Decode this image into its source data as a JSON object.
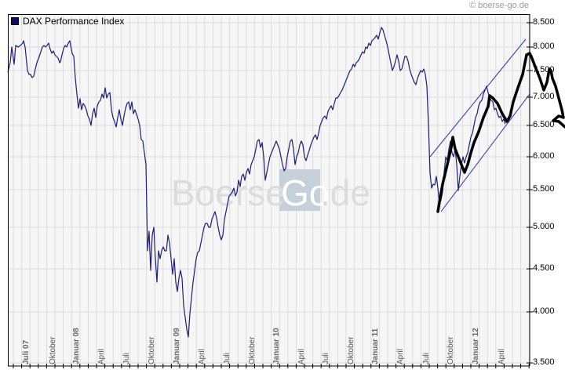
{
  "header": {
    "copyright": "© boerse-go.de"
  },
  "legend": {
    "label": "DAX Performance Index",
    "color": "#0d0d6b"
  },
  "watermark": {
    "text_left": "Boerse",
    "text_box": "Go",
    "text_right": ".de"
  },
  "colors": {
    "plot_bg": "#f6f6f6",
    "grid": "#dcdcdc",
    "series": "#1c1c7a",
    "annotation": "#000000",
    "channel": "#3030b0"
  },
  "y_axis": {
    "labels": [
      "8.500",
      "8.000",
      "7.500",
      "7.000",
      "6.500",
      "6.000",
      "5.500",
      "5.000",
      "4.500",
      "4.000",
      "3.500"
    ]
  },
  "x_axis": {
    "labels": [
      {
        "text": "Juli 07",
        "major": true
      },
      {
        "text": "Oktober",
        "major": false
      },
      {
        "text": "Januar 08",
        "major": true
      },
      {
        "text": "April",
        "major": false
      },
      {
        "text": "Juli",
        "major": false
      },
      {
        "text": "Oktober",
        "major": false
      },
      {
        "text": "Januar 09",
        "major": true
      },
      {
        "text": "April",
        "major": false
      },
      {
        "text": "Juli",
        "major": false
      },
      {
        "text": "Oktober",
        "major": false
      },
      {
        "text": "Januar 10",
        "major": true
      },
      {
        "text": "April",
        "major": false
      },
      {
        "text": "Juli",
        "major": false
      },
      {
        "text": "Oktober",
        "major": false
      },
      {
        "text": "Januar 11",
        "major": true
      },
      {
        "text": "April",
        "major": false
      },
      {
        "text": "Juli",
        "major": false
      },
      {
        "text": "Oktober",
        "major": false
      },
      {
        "text": "Januar 12",
        "major": true
      },
      {
        "text": "April",
        "major": false
      }
    ]
  },
  "chart_data": {
    "type": "line",
    "title": "DAX Performance Index",
    "xlabel": "",
    "ylabel": "",
    "y_scale": "log",
    "ylim": [
      3500,
      8600
    ],
    "grid": true,
    "legend_position": "top-left",
    "x_tick_labels": [
      "Juli 07",
      "Oktober",
      "Januar 08",
      "April",
      "Juli",
      "Oktober",
      "Januar 09",
      "April",
      "Juli",
      "Oktober",
      "Januar 10",
      "April",
      "Juli",
      "Oktober",
      "Januar 11",
      "April",
      "Juli",
      "Oktober",
      "Januar 12",
      "April"
    ],
    "y_tick_labels": [
      "3.500",
      "4.000",
      "4.500",
      "5.000",
      "5.500",
      "6.000",
      "6.500",
      "7.000",
      "7.500",
      "8.000",
      "8.500"
    ],
    "series": [
      {
        "name": "DAX Performance Index",
        "x": [
          "2007-06",
          "2007-07",
          "2007-08",
          "2007-10",
          "2007-11",
          "2007-12",
          "2008-01",
          "2008-02",
          "2008-03",
          "2008-04",
          "2008-05",
          "2008-06",
          "2008-07",
          "2008-08",
          "2008-09",
          "2008-10",
          "2008-11",
          "2008-12",
          "2009-01",
          "2009-02",
          "2009-03",
          "2009-04",
          "2009-05",
          "2009-06",
          "2009-07",
          "2009-08",
          "2009-09",
          "2009-10",
          "2009-11",
          "2009-12",
          "2010-01",
          "2010-02",
          "2010-03",
          "2010-04",
          "2010-05",
          "2010-06",
          "2010-07",
          "2010-08",
          "2010-09",
          "2010-10",
          "2010-11",
          "2010-12",
          "2011-01",
          "2011-02",
          "2011-03",
          "2011-04",
          "2011-05",
          "2011-06",
          "2011-07",
          "2011-08",
          "2011-09",
          "2011-10",
          "2011-11",
          "2011-12",
          "2012-01",
          "2012-02",
          "2012-03",
          "2012-04",
          "2012-05"
        ],
        "values": [
          7600,
          8050,
          7450,
          8100,
          7900,
          8050,
          6800,
          6900,
          6400,
          6900,
          7100,
          6450,
          6500,
          6400,
          6000,
          4800,
          4700,
          4800,
          4400,
          4100,
          3700,
          4400,
          4900,
          4800,
          5300,
          5500,
          5650,
          5500,
          5800,
          5950,
          5600,
          5600,
          6150,
          6200,
          5900,
          5950,
          6200,
          6000,
          6200,
          6600,
          6700,
          7000,
          7100,
          7300,
          6850,
          7400,
          7450,
          7300,
          7200,
          5600,
          5500,
          5900,
          5500,
          5900,
          6500,
          6900,
          7100,
          6800,
          6350
        ]
      },
      {
        "name": "Trend channel (upper)",
        "points": [
          [
            2011.63,
            6000
          ],
          [
            2012.45,
            8100
          ]
        ]
      },
      {
        "name": "Trend channel (lower)",
        "points": [
          [
            2011.7,
            5200
          ],
          [
            2012.55,
            6900
          ]
        ]
      },
      {
        "name": "Hand-drawn projection",
        "values": [
          5200,
          6300,
          5750,
          7000,
          6550,
          7900,
          7050,
          7550,
          6600,
          6400
        ]
      }
    ]
  }
}
